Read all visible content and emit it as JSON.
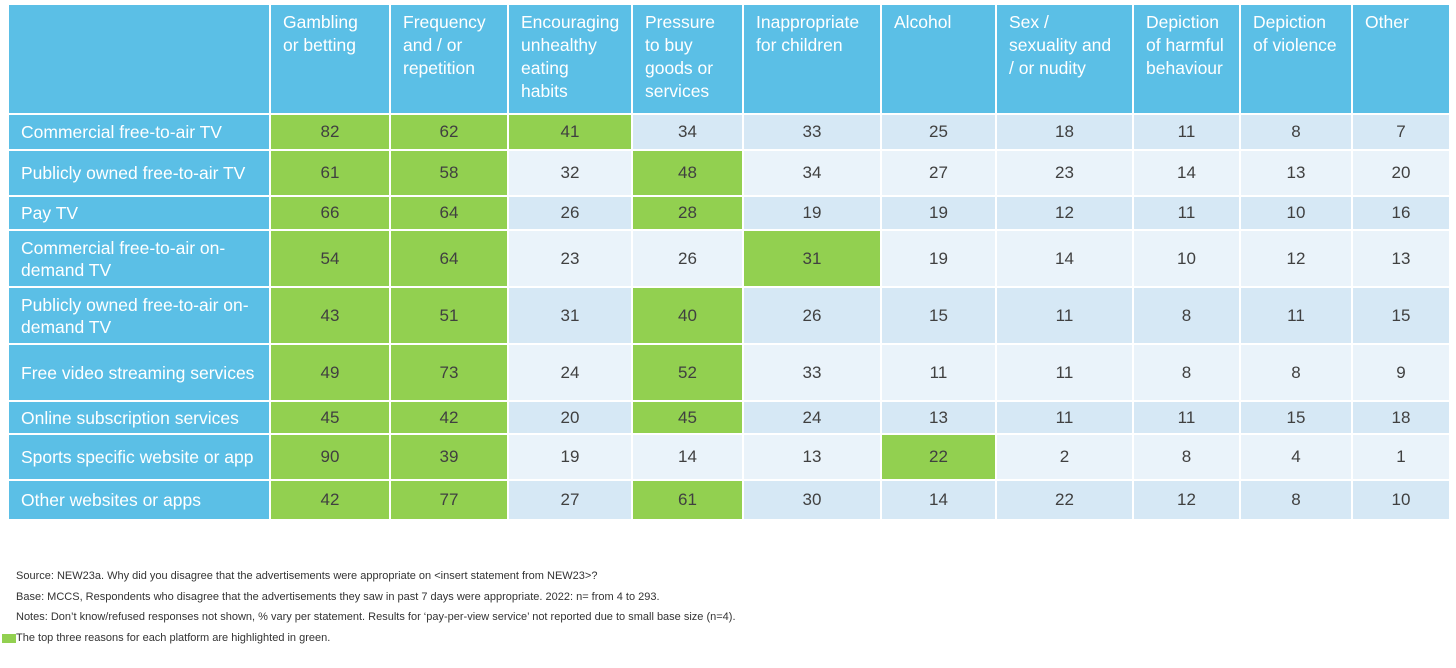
{
  "colors": {
    "header_blue": "#5bbfe6",
    "highlight_green": "#92d050",
    "band_dark": "#d6e8f5",
    "band_light": "#eaf3fa",
    "text": "#404040"
  },
  "chart_data": {
    "type": "table",
    "columns": [
      "Gambling or betting",
      "Frequency and / or repetition",
      "Encouraging unhealthy eating habits",
      "Pressure to buy goods or services",
      "Inappropriate for children",
      "Alcohol",
      "Sex / sexuality and / or nudity",
      "Depiction of harmful behaviour",
      "Depiction of violence",
      "Other"
    ],
    "rows": [
      {
        "label": "Commercial free-to-air TV",
        "values": [
          82,
          62,
          41,
          34,
          33,
          25,
          18,
          11,
          8,
          7
        ],
        "highlight": [
          true,
          true,
          true,
          false,
          false,
          false,
          false,
          false,
          false,
          false
        ]
      },
      {
        "label": "Publicly owned free-to-air TV",
        "values": [
          61,
          58,
          32,
          48,
          34,
          27,
          23,
          14,
          13,
          20
        ],
        "highlight": [
          true,
          true,
          false,
          true,
          false,
          false,
          false,
          false,
          false,
          false
        ]
      },
      {
        "label": "Pay TV",
        "values": [
          66,
          64,
          26,
          28,
          19,
          19,
          12,
          11,
          10,
          16
        ],
        "highlight": [
          true,
          true,
          false,
          true,
          false,
          false,
          false,
          false,
          false,
          false
        ]
      },
      {
        "label": "Commercial free-to-air on-demand TV",
        "values": [
          54,
          64,
          23,
          26,
          31,
          19,
          14,
          10,
          12,
          13
        ],
        "highlight": [
          true,
          true,
          false,
          false,
          true,
          false,
          false,
          false,
          false,
          false
        ]
      },
      {
        "label": "Publicly owned free-to-air on-demand TV",
        "values": [
          43,
          51,
          31,
          40,
          26,
          15,
          11,
          8,
          11,
          15
        ],
        "highlight": [
          true,
          true,
          false,
          true,
          false,
          false,
          false,
          false,
          false,
          false
        ]
      },
      {
        "label": "Free video streaming services",
        "values": [
          49,
          73,
          24,
          52,
          33,
          11,
          11,
          8,
          8,
          9
        ],
        "highlight": [
          true,
          true,
          false,
          true,
          false,
          false,
          false,
          false,
          false,
          false
        ]
      },
      {
        "label": "Online subscription services",
        "values": [
          45,
          42,
          20,
          45,
          24,
          13,
          11,
          11,
          15,
          18
        ],
        "highlight": [
          true,
          true,
          false,
          true,
          false,
          false,
          false,
          false,
          false,
          false
        ]
      },
      {
        "label": "Sports specific website or app",
        "values": [
          90,
          39,
          19,
          14,
          13,
          22,
          2,
          8,
          4,
          1
        ],
        "highlight": [
          true,
          true,
          false,
          false,
          false,
          true,
          false,
          false,
          false,
          false
        ]
      },
      {
        "label": "Other websites or apps",
        "values": [
          42,
          77,
          27,
          61,
          30,
          14,
          22,
          12,
          8,
          10
        ],
        "highlight": [
          true,
          true,
          false,
          true,
          false,
          false,
          false,
          false,
          false,
          false
        ]
      }
    ]
  },
  "notes": {
    "source": "Source: NEW23a. Why did you disagree that the advertisements were appropriate on <insert statement from NEW23>?",
    "base": "Base: MCCS, Respondents who disagree that the advertisements they saw in past 7 days were appropriate. 2022: n= from 4 to 293.",
    "notes": "Notes: Don’t know/refused responses not shown, % vary per statement. Results for ‘pay-per-view service’ not reported due to small base size (n=4).",
    "legend": "The top three reasons for each platform are highlighted in green."
  }
}
